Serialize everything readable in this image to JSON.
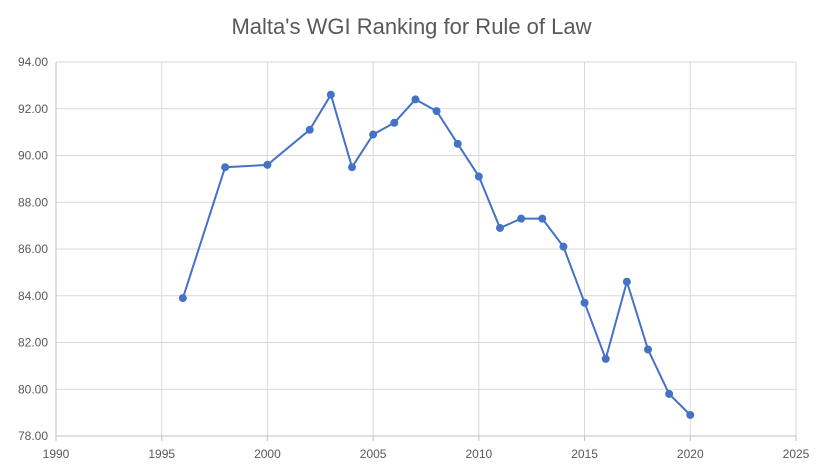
{
  "chart_data": {
    "type": "scatter",
    "title": "Malta's WGI Ranking for Rule of Law",
    "xlabel": "",
    "ylabel": "",
    "xlim": [
      1990,
      2025
    ],
    "ylim": [
      78,
      94
    ],
    "xticks": [
      1990,
      1995,
      2000,
      2005,
      2010,
      2015,
      2020,
      2025
    ],
    "yticks": [
      "78.00",
      "80.00",
      "82.00",
      "84.00",
      "86.00",
      "88.00",
      "90.00",
      "92.00",
      "94.00"
    ],
    "grid": true,
    "line_color": "#4472C4",
    "series": [
      {
        "x": [
          1996,
          1998,
          2000,
          2002,
          2003,
          2004,
          2005,
          2006,
          2007,
          2008,
          2009,
          2010,
          2011,
          2012,
          2013,
          2014,
          2015,
          2016,
          2017,
          2018,
          2019,
          2020
        ],
        "y": [
          83.9,
          89.5,
          89.6,
          91.1,
          92.6,
          89.5,
          90.9,
          91.4,
          92.4,
          91.9,
          90.5,
          89.1,
          86.9,
          87.3,
          87.3,
          86.1,
          83.7,
          81.3,
          84.6,
          81.7,
          79.8,
          78.9
        ]
      }
    ]
  }
}
